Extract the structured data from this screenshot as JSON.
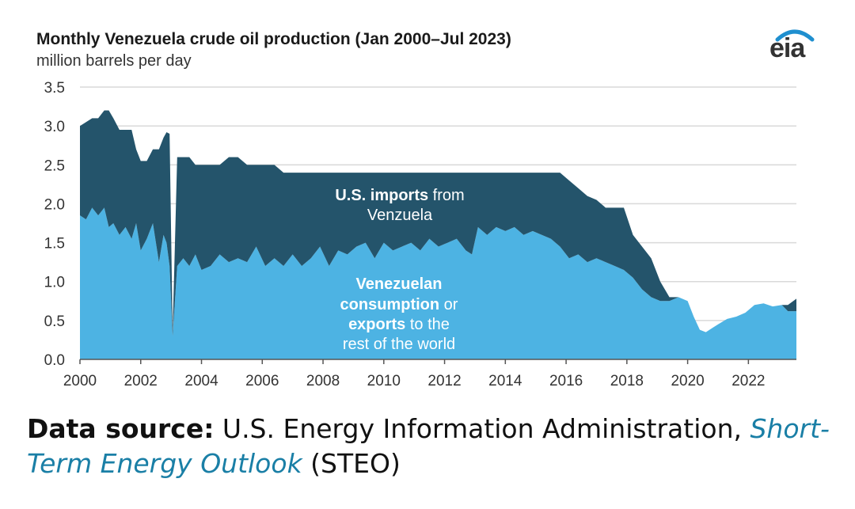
{
  "header": {
    "title": "Monthly Venezuela crude oil production (Jan 2000–Jul 2023)",
    "subtitle": "million barrels per day",
    "logo_text": "eia"
  },
  "annotations": {
    "imports_bold": "U.S. imports",
    "imports_rest": " from",
    "imports_line2": "Venzuela",
    "cons_line1": "Venezuelan",
    "cons_line2_bold": "consumption",
    "cons_line2_rest": " or",
    "cons_line3_bold": "exports",
    "cons_line3_rest": " to the",
    "cons_line4": "rest of the world"
  },
  "source": {
    "label": "Data source:",
    "text": " U.S. Energy Information Administration, ",
    "link_part1": "Short-",
    "link_part2": "Term Energy Outlook",
    "suffix": " (STEO)"
  },
  "colors": {
    "imports": "#24546b",
    "consumption": "#4db3e3",
    "grid": "#d9d9d9",
    "logo_arc": "#1f8fcf"
  },
  "chart_data": {
    "type": "area",
    "title": "Monthly Venezuela crude oil production (Jan 2000–Jul 2023)",
    "ylabel": "million barrels per day",
    "xlabel": "",
    "xlim": [
      2000,
      2023.58
    ],
    "ylim": [
      0,
      3.5
    ],
    "x_ticks": [
      2000,
      2002,
      2004,
      2006,
      2008,
      2010,
      2012,
      2014,
      2016,
      2018,
      2020,
      2022
    ],
    "y_ticks": [
      0.0,
      0.5,
      1.0,
      1.5,
      2.0,
      2.5,
      3.0,
      3.5
    ],
    "y_tick_labels": [
      "0.0",
      "0.5",
      "1.0",
      "1.5",
      "2.0",
      "2.5",
      "3.0",
      "3.5"
    ],
    "grid": true,
    "stacked": true,
    "series": [
      {
        "name": "Venezuelan consumption or exports to the rest of the world",
        "x": [
          2000.0,
          2000.2,
          2000.4,
          2000.6,
          2000.8,
          2000.95,
          2001.1,
          2001.3,
          2001.5,
          2001.7,
          2001.85,
          2002.0,
          2002.2,
          2002.4,
          2002.6,
          2002.75,
          2002.85,
          2002.95,
          2003.05,
          2003.2,
          2003.4,
          2003.6,
          2003.8,
          2004.0,
          2004.3,
          2004.6,
          2004.9,
          2005.2,
          2005.5,
          2005.8,
          2006.1,
          2006.4,
          2006.7,
          2007.0,
          2007.3,
          2007.6,
          2007.9,
          2008.2,
          2008.5,
          2008.8,
          2009.1,
          2009.4,
          2009.7,
          2010.0,
          2010.3,
          2010.6,
          2010.9,
          2011.2,
          2011.5,
          2011.8,
          2012.1,
          2012.4,
          2012.7,
          2012.9,
          2013.1,
          2013.4,
          2013.7,
          2014.0,
          2014.3,
          2014.6,
          2014.9,
          2015.2,
          2015.5,
          2015.8,
          2016.1,
          2016.4,
          2016.7,
          2017.0,
          2017.3,
          2017.6,
          2017.9,
          2018.2,
          2018.5,
          2018.8,
          2019.1,
          2019.4,
          2019.7,
          2020.0,
          2020.2,
          2020.4,
          2020.6,
          2020.8,
          2021.0,
          2021.3,
          2021.6,
          2021.9,
          2022.2,
          2022.5,
          2022.8,
          2023.1,
          2023.3,
          2023.58
        ],
        "values": [
          1.85,
          1.8,
          1.95,
          1.85,
          1.95,
          1.7,
          1.75,
          1.6,
          1.7,
          1.55,
          1.75,
          1.4,
          1.55,
          1.75,
          1.25,
          1.6,
          1.5,
          1.2,
          0.3,
          1.2,
          1.3,
          1.2,
          1.35,
          1.15,
          1.2,
          1.35,
          1.25,
          1.3,
          1.25,
          1.45,
          1.2,
          1.3,
          1.2,
          1.35,
          1.2,
          1.3,
          1.45,
          1.2,
          1.4,
          1.35,
          1.45,
          1.5,
          1.3,
          1.5,
          1.4,
          1.45,
          1.5,
          1.4,
          1.55,
          1.45,
          1.5,
          1.55,
          1.4,
          1.35,
          1.7,
          1.6,
          1.7,
          1.65,
          1.7,
          1.6,
          1.65,
          1.6,
          1.55,
          1.45,
          1.3,
          1.35,
          1.25,
          1.3,
          1.25,
          1.2,
          1.15,
          1.05,
          0.9,
          0.8,
          0.75,
          0.75,
          0.8,
          0.75,
          0.55,
          0.38,
          0.35,
          0.4,
          0.45,
          0.52,
          0.55,
          0.6,
          0.7,
          0.72,
          0.68,
          0.7,
          0.62,
          0.62
        ]
      },
      {
        "name": "U.S. imports from Venzuela",
        "x": [
          2000.0,
          2000.2,
          2000.4,
          2000.6,
          2000.8,
          2000.95,
          2001.1,
          2001.3,
          2001.5,
          2001.7,
          2001.85,
          2002.0,
          2002.2,
          2002.4,
          2002.6,
          2002.75,
          2002.85,
          2002.95,
          2003.05,
          2003.2,
          2003.4,
          2003.6,
          2003.8,
          2004.0,
          2004.3,
          2004.6,
          2004.9,
          2005.2,
          2005.5,
          2005.8,
          2006.1,
          2006.4,
          2006.7,
          2007.0,
          2007.3,
          2007.6,
          2007.9,
          2008.2,
          2008.5,
          2008.8,
          2009.1,
          2009.4,
          2009.7,
          2010.0,
          2010.3,
          2010.6,
          2010.9,
          2011.2,
          2011.5,
          2011.8,
          2012.1,
          2012.4,
          2012.7,
          2012.9,
          2013.1,
          2013.4,
          2013.7,
          2014.0,
          2014.3,
          2014.6,
          2014.9,
          2015.2,
          2015.5,
          2015.8,
          2016.1,
          2016.4,
          2016.7,
          2017.0,
          2017.3,
          2017.6,
          2017.9,
          2018.2,
          2018.5,
          2018.8,
          2019.1,
          2019.4,
          2019.7,
          2020.0,
          2020.2,
          2020.4,
          2020.6,
          2020.8,
          2021.0,
          2021.3,
          2021.6,
          2021.9,
          2022.2,
          2022.5,
          2022.8,
          2023.1,
          2023.3,
          2023.58
        ],
        "values": [
          1.15,
          1.25,
          1.15,
          1.25,
          1.25,
          1.5,
          1.35,
          1.35,
          1.25,
          1.4,
          0.95,
          1.15,
          1.0,
          0.95,
          1.45,
          1.25,
          1.42,
          1.7,
          0.05,
          1.4,
          1.3,
          1.4,
          1.15,
          1.35,
          1.3,
          1.15,
          1.35,
          1.3,
          1.25,
          1.05,
          1.3,
          1.2,
          1.2,
          1.05,
          1.2,
          1.1,
          0.95,
          1.2,
          1.0,
          1.05,
          0.95,
          0.9,
          1.1,
          0.9,
          1.0,
          0.95,
          0.9,
          1.0,
          0.85,
          0.95,
          0.9,
          0.85,
          1.0,
          1.05,
          0.7,
          0.8,
          0.7,
          0.75,
          0.7,
          0.8,
          0.75,
          0.8,
          0.85,
          0.95,
          1.0,
          0.85,
          0.85,
          0.75,
          0.7,
          0.75,
          0.8,
          0.55,
          0.55,
          0.5,
          0.25,
          0.05,
          0.0,
          0.0,
          0.0,
          0.0,
          0.0,
          0.0,
          0.0,
          0.0,
          0.0,
          0.0,
          0.0,
          0.0,
          0.0,
          0.0,
          0.08,
          0.16
        ]
      }
    ]
  }
}
